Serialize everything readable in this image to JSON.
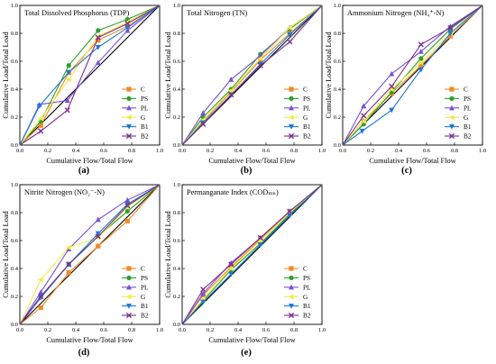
{
  "figure": {
    "line_colors": [
      "#f08a24",
      "#2ca02c",
      "#7a4fd6",
      "#f2e84a",
      "#1f77d4",
      "#7a2f8a"
    ],
    "series_names": [
      "C",
      "PS",
      "PL",
      "G",
      "B1",
      "B2"
    ],
    "marker_shapes": [
      "square",
      "circle",
      "triangle-up",
      "triangle-left",
      "triangle-down",
      "x"
    ]
  },
  "chart_data": [
    {
      "type": "line",
      "title": "Total Dissolved Phosphorus (TDP)",
      "xlabel": "Cumulative Flow/Total Flow",
      "ylabel": "Cumulative Load/Total Load",
      "panel_label": "(a)",
      "xlim": [
        0,
        1
      ],
      "ylim": [
        0,
        1
      ],
      "xticks": [
        "0.0",
        "0.2",
        "0.4",
        "0.6",
        "0.8",
        "1.0"
      ],
      "yticks": [
        "0.0",
        "0.2",
        "0.4",
        "0.6",
        "0.8",
        "1.0"
      ],
      "legend": "bottom-right",
      "reference_line": true,
      "series": [
        {
          "name": "C",
          "x": [
            0,
            0.15,
            0.35,
            0.56,
            0.77,
            1
          ],
          "y": [
            0,
            0.14,
            0.52,
            0.75,
            0.85,
            1
          ]
        },
        {
          "name": "PS",
          "x": [
            0,
            0.15,
            0.35,
            0.56,
            0.77,
            1
          ],
          "y": [
            0,
            0.17,
            0.57,
            0.82,
            0.9,
            1
          ]
        },
        {
          "name": "PL",
          "x": [
            0,
            0.14,
            0.34,
            0.56,
            0.77,
            1
          ],
          "y": [
            0,
            0.29,
            0.32,
            0.59,
            0.82,
            1
          ]
        },
        {
          "name": "G",
          "x": [
            0,
            0.15,
            0.35,
            0.56,
            0.77,
            1
          ],
          "y": [
            0,
            0.19,
            0.47,
            0.78,
            0.88,
            1
          ]
        },
        {
          "name": "B1",
          "x": [
            0,
            0.14,
            0.35,
            0.56,
            0.77,
            1
          ],
          "y": [
            0,
            0.28,
            0.52,
            0.7,
            0.84,
            1
          ]
        },
        {
          "name": "B2",
          "x": [
            0,
            0.15,
            0.34,
            0.56,
            0.77,
            1
          ],
          "y": [
            0,
            0.1,
            0.25,
            0.77,
            0.87,
            1
          ]
        }
      ]
    },
    {
      "type": "line",
      "title": "Total Nitrogen (TN)",
      "xlabel": "Cumulative Flow/Total Flow",
      "ylabel": "Cumulative Load/Total Load",
      "panel_label": "(b)",
      "xlim": [
        0,
        1
      ],
      "ylim": [
        0,
        1
      ],
      "xticks": [
        "0.0",
        "0.2",
        "0.4",
        "0.6",
        "0.8",
        "1.0"
      ],
      "yticks": [
        "0.0",
        "0.2",
        "0.4",
        "0.6",
        "0.8",
        "1.0"
      ],
      "legend": "bottom-right",
      "reference_line": true,
      "series": [
        {
          "name": "C",
          "x": [
            0,
            0.15,
            0.35,
            0.56,
            0.77,
            1
          ],
          "y": [
            0,
            0.17,
            0.38,
            0.61,
            0.8,
            1
          ]
        },
        {
          "name": "PS",
          "x": [
            0,
            0.15,
            0.35,
            0.56,
            0.77,
            1
          ],
          "y": [
            0,
            0.2,
            0.4,
            0.65,
            0.83,
            1
          ]
        },
        {
          "name": "PL",
          "x": [
            0,
            0.15,
            0.35,
            0.56,
            0.77,
            1
          ],
          "y": [
            0,
            0.23,
            0.47,
            0.64,
            0.84,
            1
          ]
        },
        {
          "name": "G",
          "x": [
            0,
            0.15,
            0.35,
            0.56,
            0.77,
            1
          ],
          "y": [
            0,
            0.18,
            0.39,
            0.62,
            0.84,
            1
          ]
        },
        {
          "name": "B1",
          "x": [
            0,
            0.15,
            0.35,
            0.56,
            0.77,
            1
          ],
          "y": [
            0,
            0.16,
            0.36,
            0.58,
            0.79,
            1
          ]
        },
        {
          "name": "B2",
          "x": [
            0,
            0.15,
            0.35,
            0.56,
            0.77,
            1
          ],
          "y": [
            0,
            0.15,
            0.36,
            0.57,
            0.74,
            1
          ]
        }
      ]
    },
    {
      "type": "line",
      "title": "Ammonium Nitrogen (NH₄⁺-N)",
      "xlabel": "Cumulative Flow/Total Flow",
      "ylabel": "Cumulative Load/Total Load",
      "panel_label": "(c)",
      "xlim": [
        0,
        1
      ],
      "ylim": [
        0,
        1
      ],
      "xticks": [
        "0.0",
        "0.2",
        "0.4",
        "0.6",
        "0.8",
        "1.0"
      ],
      "yticks": [
        "0.0",
        "0.2",
        "0.4",
        "0.6",
        "0.8",
        "1.0"
      ],
      "legend": "bottom-right",
      "reference_line": true,
      "series": [
        {
          "name": "C",
          "x": [
            0,
            0.15,
            0.35,
            0.56,
            0.77,
            1
          ],
          "y": [
            0,
            0.17,
            0.37,
            0.57,
            0.78,
            1
          ]
        },
        {
          "name": "PS",
          "x": [
            0,
            0.15,
            0.35,
            0.56,
            0.77,
            1
          ],
          "y": [
            0,
            0.15,
            0.38,
            0.62,
            0.83,
            1
          ]
        },
        {
          "name": "PL",
          "x": [
            0,
            0.15,
            0.35,
            0.56,
            0.77,
            1
          ],
          "y": [
            0,
            0.28,
            0.51,
            0.67,
            0.85,
            1
          ]
        },
        {
          "name": "G",
          "x": [
            0,
            0.15,
            0.35,
            0.56,
            0.77,
            1
          ],
          "y": [
            0,
            0.17,
            0.4,
            0.59,
            0.8,
            1
          ]
        },
        {
          "name": "B1",
          "x": [
            0,
            0.14,
            0.35,
            0.56,
            0.77,
            1
          ],
          "y": [
            0,
            0.1,
            0.25,
            0.54,
            0.8,
            1
          ]
        },
        {
          "name": "B2",
          "x": [
            0,
            0.15,
            0.35,
            0.56,
            0.77,
            1
          ],
          "y": [
            0,
            0.21,
            0.42,
            0.72,
            0.84,
            1
          ]
        }
      ]
    },
    {
      "type": "line",
      "title": "Nitrite Nitrogen (NO₂⁻-N)",
      "xlabel": "Cumulative Flow/Total Flow",
      "ylabel": "Cumulative Load/Total Load",
      "panel_label": "(d)",
      "xlim": [
        0,
        1
      ],
      "ylim": [
        0,
        1
      ],
      "xticks": [
        "0.0",
        "0.2",
        "0.4",
        "0.6",
        "0.8",
        "1.0"
      ],
      "yticks": [
        "0.0",
        "0.2",
        "0.4",
        "0.6",
        "0.8",
        "1.0"
      ],
      "legend": "bottom-right",
      "reference_line": true,
      "series": [
        {
          "name": "C",
          "x": [
            0,
            0.15,
            0.35,
            0.56,
            0.77,
            1
          ],
          "y": [
            0,
            0.12,
            0.37,
            0.56,
            0.74,
            1
          ]
        },
        {
          "name": "PS",
          "x": [
            0,
            0.15,
            0.35,
            0.56,
            0.77,
            1
          ],
          "y": [
            0,
            0.2,
            0.43,
            0.63,
            0.81,
            1
          ]
        },
        {
          "name": "PL",
          "x": [
            0,
            0.15,
            0.35,
            0.56,
            0.77,
            1
          ],
          "y": [
            0,
            0.23,
            0.54,
            0.75,
            0.89,
            1
          ]
        },
        {
          "name": "G",
          "x": [
            0,
            0.15,
            0.35,
            0.56,
            0.77,
            1
          ],
          "y": [
            0,
            0.32,
            0.55,
            0.62,
            0.84,
            1
          ]
        },
        {
          "name": "B1",
          "x": [
            0,
            0.15,
            0.35,
            0.56,
            0.77,
            1
          ],
          "y": [
            0,
            0.19,
            0.43,
            0.65,
            0.86,
            1
          ]
        },
        {
          "name": "B2",
          "x": [
            0,
            0.15,
            0.35,
            0.56,
            0.77,
            1
          ],
          "y": [
            0,
            0.2,
            0.43,
            0.63,
            0.85,
            1
          ]
        }
      ]
    },
    {
      "type": "line",
      "title": "Permanganate Index (CODₘₙ)",
      "xlabel": "Cumulative Flow/Total Flow",
      "ylabel": "Cumulative Load/Total Load",
      "panel_label": "(e)",
      "xlim": [
        0,
        1
      ],
      "ylim": [
        0,
        1
      ],
      "xticks": [
        "0.0",
        "0.2",
        "0.4",
        "0.6",
        "0.8",
        "1.0"
      ],
      "yticks": [
        "0.0",
        "0.2",
        "0.4",
        "0.6",
        "0.8",
        "1.0"
      ],
      "legend": "bottom-right",
      "reference_line": true,
      "series": [
        {
          "name": "C",
          "x": [
            0,
            0.15,
            0.35,
            0.56,
            0.77,
            1
          ],
          "y": [
            0,
            0.21,
            0.41,
            0.61,
            0.8,
            1
          ]
        },
        {
          "name": "PS",
          "x": [
            0,
            0.15,
            0.35,
            0.56,
            0.77,
            1
          ],
          "y": [
            0,
            0.17,
            0.39,
            0.58,
            0.79,
            1
          ]
        },
        {
          "name": "PL",
          "x": [
            0,
            0.15,
            0.35,
            0.56,
            0.77,
            1
          ],
          "y": [
            0,
            0.22,
            0.44,
            0.62,
            0.81,
            1
          ]
        },
        {
          "name": "G",
          "x": [
            0,
            0.15,
            0.35,
            0.56,
            0.77,
            1
          ],
          "y": [
            0,
            0.18,
            0.4,
            0.6,
            0.8,
            1
          ]
        },
        {
          "name": "B1",
          "x": [
            0,
            0.15,
            0.35,
            0.56,
            0.77,
            1
          ],
          "y": [
            0,
            0.16,
            0.36,
            0.57,
            0.78,
            1
          ]
        },
        {
          "name": "B2",
          "x": [
            0,
            0.15,
            0.35,
            0.56,
            0.77,
            1
          ],
          "y": [
            0,
            0.25,
            0.43,
            0.62,
            0.81,
            1
          ]
        }
      ]
    }
  ]
}
